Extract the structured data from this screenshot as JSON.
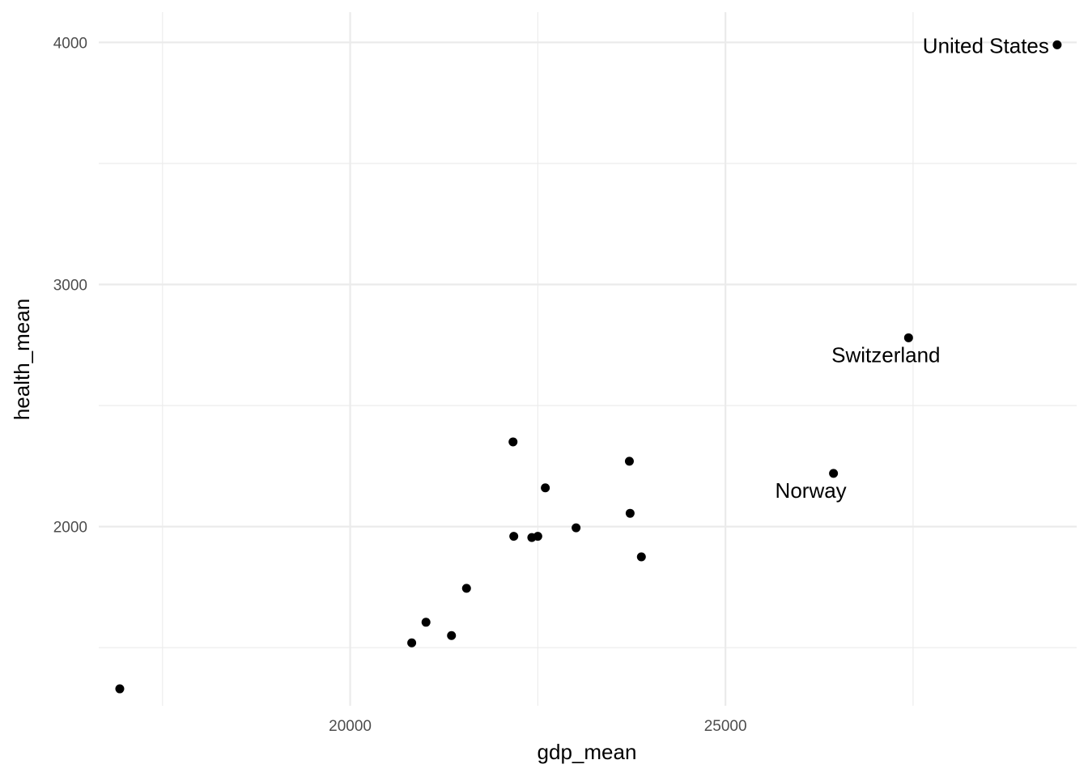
{
  "chart_data": {
    "type": "scatter",
    "title": "",
    "xlabel": "gdp_mean",
    "ylabel": "health_mean",
    "xlim": [
      16650,
      29680
    ],
    "ylim": [
      1260,
      4125
    ],
    "grid": true,
    "legend": "none",
    "x_ticks": [
      20000,
      25000
    ],
    "y_ticks": [
      2000,
      3000,
      4000
    ],
    "x_minor_ticks": [
      17500,
      22500,
      27500
    ],
    "y_minor_ticks": [
      1500,
      2500,
      3500
    ],
    "point_color": "#000000",
    "points": [
      {
        "x": 16930,
        "y": 1330
      },
      {
        "x": 20820,
        "y": 1520
      },
      {
        "x": 21010,
        "y": 1605
      },
      {
        "x": 21350,
        "y": 1550
      },
      {
        "x": 21550,
        "y": 1745
      },
      {
        "x": 22170,
        "y": 2350
      },
      {
        "x": 22180,
        "y": 1960
      },
      {
        "x": 22420,
        "y": 1955
      },
      {
        "x": 22500,
        "y": 1960
      },
      {
        "x": 22600,
        "y": 2160
      },
      {
        "x": 23010,
        "y": 1995
      },
      {
        "x": 23720,
        "y": 2270
      },
      {
        "x": 23730,
        "y": 2055
      },
      {
        "x": 23880,
        "y": 1875
      },
      {
        "x": 26440,
        "y": 2220,
        "label": "Norway"
      },
      {
        "x": 27440,
        "y": 2780,
        "label": "Switzerland"
      },
      {
        "x": 29420,
        "y": 3990,
        "label": "United States"
      }
    ]
  }
}
